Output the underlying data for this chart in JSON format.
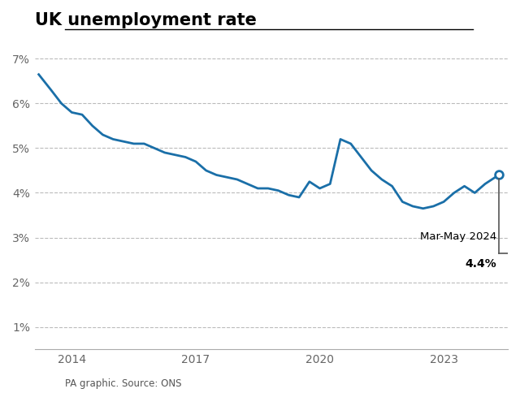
{
  "title": "UK unemployment rate",
  "source": "PA graphic. Source: ONS",
  "line_color": "#1a6fa8",
  "annotation_line_color": "#555555",
  "background_color": "#ffffff",
  "ylim": [
    0.5,
    7.5
  ],
  "yticks": [
    1,
    2,
    3,
    4,
    5,
    6,
    7
  ],
  "ytick_labels": [
    "1%",
    "2%",
    "3%",
    "4%",
    "5%",
    "6%",
    "7%"
  ],
  "annotation_text_line1": "Mar-May 2024",
  "annotation_text_line2": "4.4%",
  "xlim_left": 2013.1,
  "xlim_right": 2024.55,
  "data": [
    [
      2013.2,
      6.65
    ],
    [
      2013.5,
      6.3
    ],
    [
      2013.75,
      6.0
    ],
    [
      2014.0,
      5.8
    ],
    [
      2014.25,
      5.75
    ],
    [
      2014.5,
      5.5
    ],
    [
      2014.75,
      5.3
    ],
    [
      2015.0,
      5.2
    ],
    [
      2015.25,
      5.15
    ],
    [
      2015.5,
      5.1
    ],
    [
      2015.75,
      5.1
    ],
    [
      2016.0,
      5.0
    ],
    [
      2016.25,
      4.9
    ],
    [
      2016.5,
      4.85
    ],
    [
      2016.75,
      4.8
    ],
    [
      2017.0,
      4.7
    ],
    [
      2017.25,
      4.5
    ],
    [
      2017.5,
      4.4
    ],
    [
      2017.75,
      4.35
    ],
    [
      2018.0,
      4.3
    ],
    [
      2018.25,
      4.2
    ],
    [
      2018.5,
      4.1
    ],
    [
      2018.75,
      4.1
    ],
    [
      2019.0,
      4.05
    ],
    [
      2019.25,
      3.95
    ],
    [
      2019.5,
      3.9
    ],
    [
      2019.75,
      4.25
    ],
    [
      2020.0,
      4.1
    ],
    [
      2020.25,
      4.2
    ],
    [
      2020.5,
      5.2
    ],
    [
      2020.75,
      5.1
    ],
    [
      2021.0,
      4.8
    ],
    [
      2021.25,
      4.5
    ],
    [
      2021.5,
      4.3
    ],
    [
      2021.75,
      4.15
    ],
    [
      2022.0,
      3.8
    ],
    [
      2022.25,
      3.7
    ],
    [
      2022.5,
      3.65
    ],
    [
      2022.75,
      3.7
    ],
    [
      2023.0,
      3.8
    ],
    [
      2023.25,
      4.0
    ],
    [
      2023.5,
      4.15
    ],
    [
      2023.75,
      4.0
    ],
    [
      2024.0,
      4.2
    ],
    [
      2024.33,
      4.4
    ]
  ],
  "xtick_positions": [
    2014,
    2017,
    2020,
    2023
  ],
  "xtick_labels": [
    "2014",
    "2017",
    "2020",
    "2023"
  ]
}
